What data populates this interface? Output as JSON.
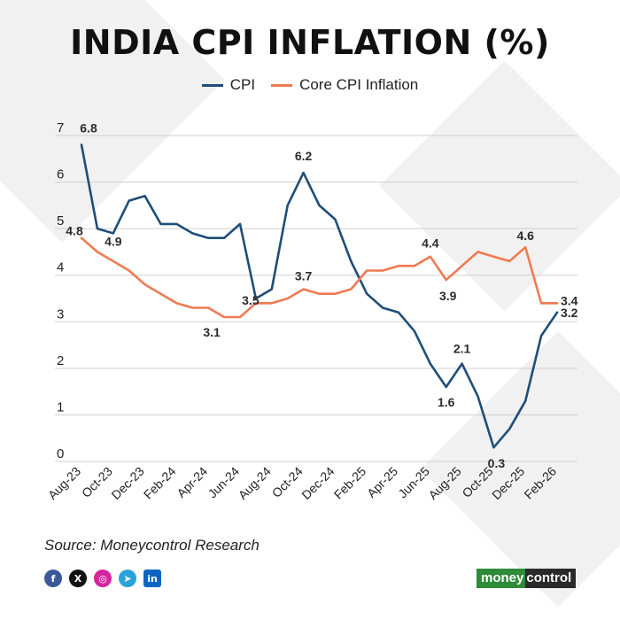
{
  "colors": {
    "cpi": "#1f4e79",
    "core": "#ef7a52",
    "grid": "#cfcfcf",
    "text": "#222222"
  },
  "icons": [
    "facebook-icon",
    "x-icon",
    "instagram-icon",
    "telegram-icon",
    "linkedin-icon"
  ],
  "logo": {
    "part1": "money",
    "part2": "control"
  },
  "source": "Source: Moneycontrol Research",
  "chart_data": {
    "type": "line",
    "title": "INDIA CPI INFLATION (%)",
    "xlabel": "",
    "ylabel": "",
    "ylim": [
      0,
      7
    ],
    "yticks": [
      0,
      1,
      2,
      3,
      4,
      5,
      6,
      7
    ],
    "grid": true,
    "legend": "top-center",
    "x": [
      "Aug-23",
      "Sep-23",
      "Oct-23",
      "Nov-23",
      "Dec-23",
      "Jan-24",
      "Feb-24",
      "Mar-24",
      "Apr-24",
      "May-24",
      "Jun-24",
      "Jul-24",
      "Aug-24",
      "Sep-24",
      "Oct-24",
      "Nov-24",
      "Dec-24",
      "Jan-25",
      "Feb-25",
      "Mar-25",
      "Apr-25",
      "May-25",
      "Jun-25",
      "Jul-25",
      "Aug-25",
      "Sep-25",
      "Oct-25",
      "Nov-25",
      "Dec-25",
      "Jan-26",
      "Feb-26"
    ],
    "xticks": [
      "Aug-23",
      "Oct-23",
      "Dec-23",
      "Feb-24",
      "Apr-24",
      "Jun-24",
      "Aug-24",
      "Oct-24",
      "Dec-24",
      "Feb-25",
      "Apr-25",
      "Jun-25",
      "Aug-25",
      "Oct-25",
      "Dec-25",
      "Feb-26"
    ],
    "series": [
      {
        "name": "CPI",
        "values": [
          6.8,
          5.0,
          4.9,
          5.6,
          5.7,
          5.1,
          5.1,
          4.9,
          4.8,
          4.8,
          5.1,
          3.5,
          3.7,
          5.5,
          6.2,
          5.5,
          5.2,
          4.3,
          3.6,
          3.3,
          3.2,
          2.8,
          2.1,
          1.6,
          2.1,
          1.4,
          0.3,
          0.7,
          1.3,
          2.7,
          3.2
        ],
        "labels": [
          {
            "i": 0,
            "text": "6.8"
          },
          {
            "i": 2,
            "text": "4.9"
          },
          {
            "i": 11,
            "text": "3.5"
          },
          {
            "i": 14,
            "text": "6.2"
          },
          {
            "i": 23,
            "text": "1.6"
          },
          {
            "i": 24,
            "text": "2.1"
          },
          {
            "i": 26,
            "text": "0.3"
          },
          {
            "i": 30,
            "text": "3.2"
          }
        ]
      },
      {
        "name": "Core CPI Inflation",
        "values": [
          4.8,
          4.5,
          4.3,
          4.1,
          3.8,
          3.6,
          3.4,
          3.3,
          3.3,
          3.1,
          3.1,
          3.4,
          3.4,
          3.5,
          3.7,
          3.6,
          3.6,
          3.7,
          4.1,
          4.1,
          4.2,
          4.2,
          4.4,
          3.9,
          4.2,
          4.5,
          4.4,
          4.3,
          4.6,
          3.4,
          3.4
        ],
        "labels": [
          {
            "i": 0,
            "text": "4.8"
          },
          {
            "i": 9,
            "text": "3.1"
          },
          {
            "i": 14,
            "text": "3.7"
          },
          {
            "i": 22,
            "text": "4.4"
          },
          {
            "i": 23,
            "text": "3.9"
          },
          {
            "i": 28,
            "text": "4.6"
          },
          {
            "i": 30,
            "text": "3.4"
          }
        ]
      }
    ]
  }
}
